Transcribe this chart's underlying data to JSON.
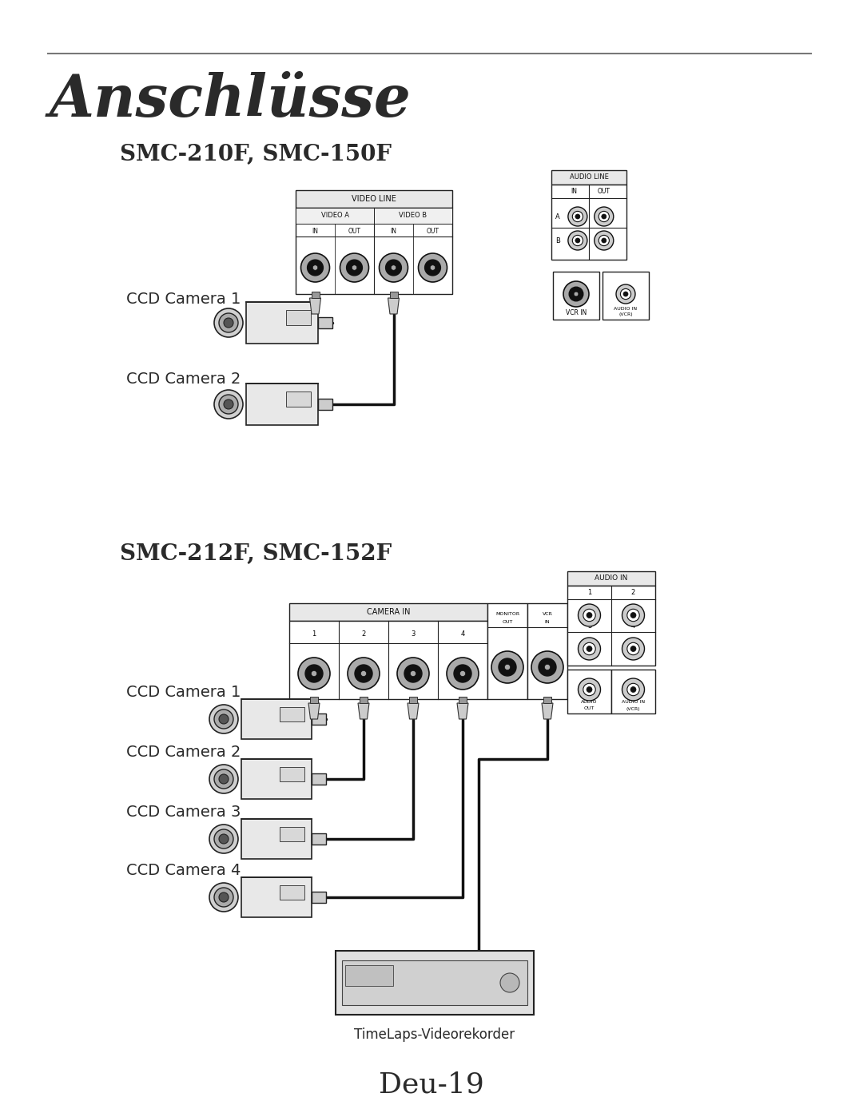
{
  "title": "Anschlüsse",
  "subtitle1": "SMC-210F, SMC-150F",
  "subtitle2": "SMC-212F, SMC-152F",
  "footer": "Deu-19",
  "camera_labels_top": [
    "CCD Camera 1",
    "CCD Camera 2"
  ],
  "camera_labels_bottom": [
    "CCD Camera 1",
    "CCD Camera 2",
    "CCD Camera 3",
    "CCD Camera 4"
  ],
  "vcr_label": "TimeLaps-Videorekorder",
  "bg_color": "#ffffff",
  "text_color": "#2a2a2a",
  "line_color": "#111111",
  "dark": "#111111",
  "mid": "#888888",
  "light": "#dddddd",
  "panel_fc": "#ffffff",
  "cam_body_fc": "#e4e4e4",
  "cam_lens_fc": "#cccccc",
  "cam_inner_fc": "#777777"
}
